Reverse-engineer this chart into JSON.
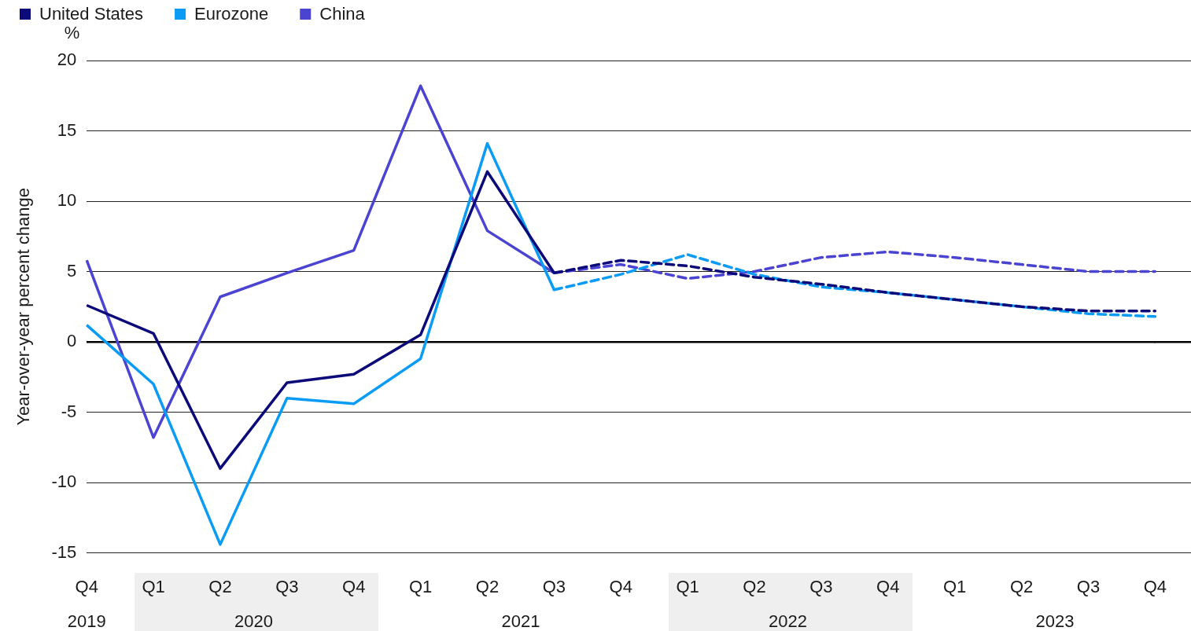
{
  "chart_data": {
    "type": "line",
    "ylabel": "Year-over-year percent change",
    "annotations": [
      "%",
      "2019",
      "2020",
      "2021",
      "2022",
      "2023"
    ],
    "categories": [
      "Q4",
      "Q1",
      "Q2",
      "Q3",
      "Q4",
      "Q1",
      "Q2",
      "Q3",
      "Q4",
      "Q1",
      "Q2",
      "Q3",
      "Q4",
      "Q1",
      "Q2",
      "Q3",
      "Q4"
    ],
    "series": [
      {
        "name": "United States",
        "color": "#0b0a78",
        "line_style": "solid",
        "values": [
          2.6,
          0.6,
          -9.0,
          -2.9,
          -2.3,
          0.5,
          12.1,
          4.9,
          null,
          null,
          null,
          null,
          null,
          null,
          null,
          null,
          null
        ]
      },
      {
        "name": "Eurozone",
        "color": "#0a9cf5",
        "line_style": "solid",
        "values": [
          1.2,
          -3.0,
          -14.4,
          -4.0,
          -4.4,
          -1.2,
          14.1,
          3.7,
          null,
          null,
          null,
          null,
          null,
          null,
          null,
          null,
          null
        ]
      },
      {
        "name": "China",
        "color": "#4b44d0",
        "line_style": "solid",
        "values": [
          5.8,
          -6.8,
          3.2,
          4.9,
          6.5,
          18.2,
          7.9,
          4.9,
          null,
          null,
          null,
          null,
          null,
          null,
          null,
          null,
          null
        ]
      },
      {
        "color": "#0b0a78",
        "line_style": "dashed",
        "values": [
          null,
          null,
          null,
          null,
          null,
          null,
          null,
          4.9,
          5.8,
          5.4,
          4.6,
          4.1,
          3.5,
          3.0,
          2.5,
          2.2,
          2.2
        ]
      },
      {
        "color": "#0a9cf5",
        "line_style": "dashed",
        "values": [
          null,
          null,
          null,
          null,
          null,
          null,
          null,
          3.7,
          4.8,
          6.2,
          4.8,
          3.9,
          3.5,
          3.0,
          2.5,
          2.0,
          1.8
        ]
      },
      {
        "color": "#4b44d0",
        "line_style": "dashed",
        "values": [
          null,
          null,
          null,
          null,
          null,
          null,
          null,
          4.9,
          5.5,
          4.5,
          5.0,
          6.0,
          6.4,
          6.0,
          5.5,
          5.0,
          5.0
        ]
      }
    ],
    "ylim": [
      -15,
      20
    ],
    "yticks": [
      -15,
      -10,
      -5,
      0,
      5,
      10,
      15,
      20
    ],
    "grid": "y",
    "legend": "top left",
    "marker": "none"
  }
}
